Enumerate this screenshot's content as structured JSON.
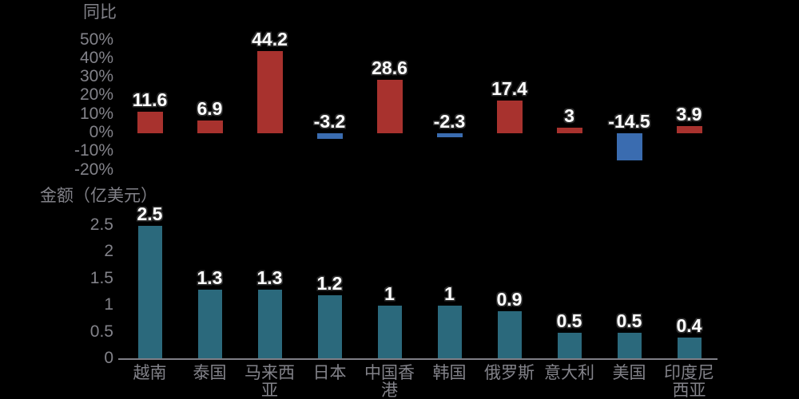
{
  "background": "#000000",
  "colors": {
    "positive_bar": "#A8322E",
    "negative_bar": "#3A6CB0",
    "amount_bar": "#2B697C",
    "axis_text": "#828289",
    "value_label_text": "#FFFFFF",
    "value_label_outline": "#2E2E2E",
    "axis_line": "#7F7F87"
  },
  "chart_data": [
    {
      "type": "bar",
      "title": "同比",
      "categories": [
        "越南",
        "泰国",
        "马来西亚",
        "日本",
        "中国香港",
        "韩国",
        "俄罗斯",
        "意大利",
        "美国",
        "印度尼西亚"
      ],
      "values": [
        11.6,
        6.9,
        44.2,
        -3.2,
        28.6,
        -2.3,
        17.4,
        3,
        -14.5,
        3.9
      ],
      "value_labels": [
        "11.6",
        "6.9",
        "44.2",
        "-3.2",
        "28.6",
        "-2.3",
        "17.4",
        "3",
        "-14.5",
        "3.9"
      ],
      "ylabel": "同比",
      "yticks": [
        "50%",
        "40%",
        "30%",
        "20%",
        "10%",
        "0%",
        "-10%",
        "-20%"
      ],
      "ytick_values": [
        50,
        40,
        30,
        20,
        10,
        0,
        -10,
        -20
      ],
      "ylim": [
        -20,
        50
      ],
      "grid": false,
      "legend": "none",
      "bar_color_rule": "red-if-positive-blue-if-negative"
    },
    {
      "type": "bar",
      "title": "金额（亿美元）",
      "categories": [
        "越南",
        "泰国",
        "马来西亚",
        "日本",
        "中国香港",
        "韩国",
        "俄罗斯",
        "意大利",
        "美国",
        "印度尼西亚"
      ],
      "values": [
        2.5,
        1.3,
        1.3,
        1.2,
        1,
        1,
        0.9,
        0.5,
        0.5,
        0.4
      ],
      "value_labels": [
        "2.5",
        "1.3",
        "1.3",
        "1.2",
        "1",
        "1",
        "0.9",
        "0.5",
        "0.5",
        "0.4"
      ],
      "ylabel": "金额（亿美元）",
      "yticks": [
        "2.5",
        "2",
        "1.5",
        "1",
        "0.5",
        "0"
      ],
      "ytick_values": [
        2.5,
        2,
        1.5,
        1,
        0.5,
        0
      ],
      "ylim": [
        0,
        2.5
      ],
      "grid": false,
      "legend": "none",
      "bar_color_rule": "teal"
    }
  ]
}
